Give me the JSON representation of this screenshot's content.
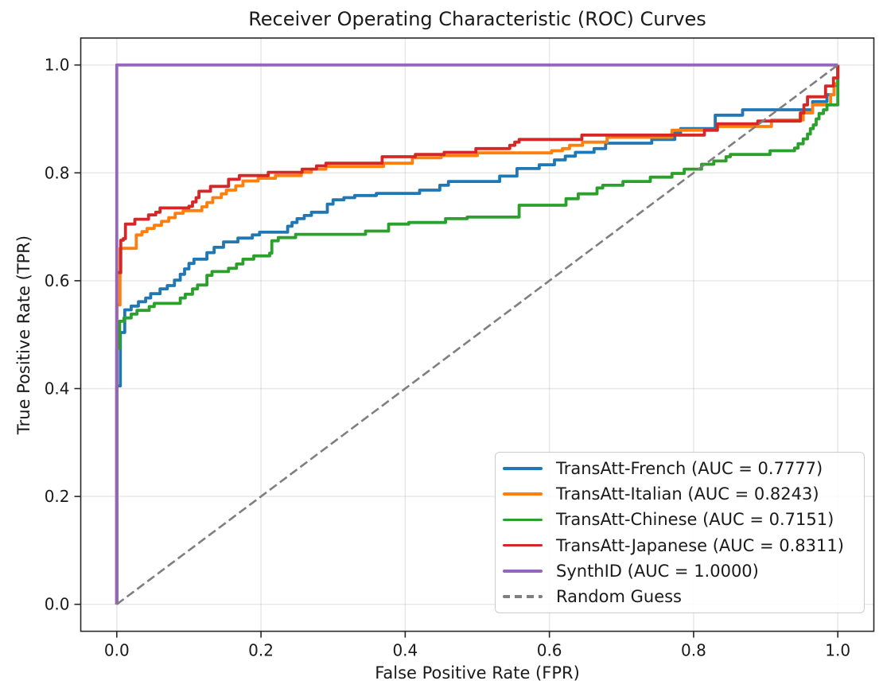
{
  "chart_data": {
    "type": "line",
    "title": "Receiver Operating Characteristic (ROC) Curves",
    "xlabel": "False Positive Rate (FPR)",
    "ylabel": "True Positive Rate (TPR)",
    "xlim": [
      -0.05,
      1.05
    ],
    "ylim": [
      -0.05,
      1.05
    ],
    "xtick_labels": [
      "0.0",
      "0.2",
      "0.4",
      "0.6",
      "0.8",
      "1.0"
    ],
    "ytick_labels": [
      "0.0",
      "0.2",
      "0.4",
      "0.6",
      "0.8",
      "1.0"
    ],
    "grid": true,
    "legend_position": "lower right",
    "axis_color": "#262626",
    "grid_color": "#b0b0b0",
    "series": [
      {
        "name": "transatt-french",
        "label": "TransAtt-French (AUC = 0.7777)",
        "auc": 0.7777,
        "color": "#1f77b4",
        "style": "step",
        "points": [
          [
            0,
            0
          ],
          [
            0,
            0.405
          ],
          [
            0.005,
            0.405
          ],
          [
            0.005,
            0.504
          ],
          [
            0.011,
            0.504
          ],
          [
            0.011,
            0.546
          ],
          [
            0.02,
            0.553
          ],
          [
            0.03,
            0.561
          ],
          [
            0.04,
            0.568
          ],
          [
            0.047,
            0.576
          ],
          [
            0.06,
            0.585
          ],
          [
            0.07,
            0.591
          ],
          [
            0.08,
            0.601
          ],
          [
            0.088,
            0.612
          ],
          [
            0.094,
            0.622
          ],
          [
            0.1,
            0.632
          ],
          [
            0.107,
            0.64
          ],
          [
            0.125,
            0.652
          ],
          [
            0.135,
            0.662
          ],
          [
            0.148,
            0.672
          ],
          [
            0.168,
            0.679
          ],
          [
            0.188,
            0.685
          ],
          [
            0.198,
            0.69
          ],
          [
            0.237,
            0.701
          ],
          [
            0.243,
            0.708
          ],
          [
            0.25,
            0.715
          ],
          [
            0.26,
            0.721
          ],
          [
            0.27,
            0.727
          ],
          [
            0.292,
            0.742
          ],
          [
            0.3,
            0.75
          ],
          [
            0.315,
            0.754
          ],
          [
            0.33,
            0.758
          ],
          [
            0.36,
            0.762
          ],
          [
            0.42,
            0.768
          ],
          [
            0.448,
            0.777
          ],
          [
            0.46,
            0.784
          ],
          [
            0.531,
            0.794
          ],
          [
            0.555,
            0.808
          ],
          [
            0.586,
            0.815
          ],
          [
            0.607,
            0.824
          ],
          [
            0.622,
            0.831
          ],
          [
            0.636,
            0.838
          ],
          [
            0.662,
            0.845
          ],
          [
            0.678,
            0.855
          ],
          [
            0.742,
            0.862
          ],
          [
            0.774,
            0.874
          ],
          [
            0.782,
            0.882
          ],
          [
            0.83,
            0.907
          ],
          [
            0.868,
            0.917
          ],
          [
            0.965,
            0.932
          ],
          [
            0.985,
            0.945
          ],
          [
            0.995,
            0.962
          ],
          [
            1,
            1
          ]
        ]
      },
      {
        "name": "transatt-italian",
        "label": "TransAtt-Italian (AUC = 0.8243)",
        "auc": 0.8243,
        "color": "#ff7f0e",
        "style": "step",
        "points": [
          [
            0,
            0
          ],
          [
            0,
            0.555
          ],
          [
            0.0045,
            0.555
          ],
          [
            0.0045,
            0.66
          ],
          [
            0.024,
            0.66
          ],
          [
            0.027,
            0.685
          ],
          [
            0.035,
            0.691
          ],
          [
            0.042,
            0.697
          ],
          [
            0.052,
            0.703
          ],
          [
            0.062,
            0.71
          ],
          [
            0.072,
            0.717
          ],
          [
            0.081,
            0.725
          ],
          [
            0.092,
            0.73
          ],
          [
            0.118,
            0.737
          ],
          [
            0.125,
            0.745
          ],
          [
            0.133,
            0.754
          ],
          [
            0.145,
            0.761
          ],
          [
            0.152,
            0.768
          ],
          [
            0.165,
            0.776
          ],
          [
            0.175,
            0.785
          ],
          [
            0.196,
            0.79
          ],
          [
            0.22,
            0.795
          ],
          [
            0.256,
            0.801
          ],
          [
            0.27,
            0.807
          ],
          [
            0.29,
            0.812
          ],
          [
            0.37,
            0.818
          ],
          [
            0.41,
            0.828
          ],
          [
            0.45,
            0.832
          ],
          [
            0.5,
            0.837
          ],
          [
            0.603,
            0.841
          ],
          [
            0.618,
            0.845
          ],
          [
            0.628,
            0.851
          ],
          [
            0.646,
            0.857
          ],
          [
            0.68,
            0.866
          ],
          [
            0.77,
            0.879
          ],
          [
            0.833,
            0.886
          ],
          [
            0.908,
            0.898
          ],
          [
            0.952,
            0.911
          ],
          [
            0.965,
            0.926
          ],
          [
            0.99,
            0.926
          ],
          [
            0.99,
            0.945
          ],
          [
            0.995,
            0.965
          ],
          [
            1,
            1
          ]
        ]
      },
      {
        "name": "transatt-chinese",
        "label": "TransAtt-Chinese (AUC = 0.7151)",
        "auc": 0.7151,
        "color": "#2ca02c",
        "style": "step",
        "points": [
          [
            0,
            0
          ],
          [
            0,
            0.475
          ],
          [
            0.004,
            0.475
          ],
          [
            0.004,
            0.525
          ],
          [
            0.01,
            0.531
          ],
          [
            0.02,
            0.538
          ],
          [
            0.028,
            0.545
          ],
          [
            0.045,
            0.552
          ],
          [
            0.052,
            0.558
          ],
          [
            0.088,
            0.568
          ],
          [
            0.095,
            0.575
          ],
          [
            0.105,
            0.585
          ],
          [
            0.112,
            0.592
          ],
          [
            0.125,
            0.61
          ],
          [
            0.132,
            0.617
          ],
          [
            0.155,
            0.623
          ],
          [
            0.166,
            0.631
          ],
          [
            0.175,
            0.64
          ],
          [
            0.19,
            0.646
          ],
          [
            0.212,
            0.651
          ],
          [
            0.215,
            0.674
          ],
          [
            0.224,
            0.68
          ],
          [
            0.248,
            0.686
          ],
          [
            0.345,
            0.692
          ],
          [
            0.377,
            0.705
          ],
          [
            0.405,
            0.708
          ],
          [
            0.456,
            0.715
          ],
          [
            0.486,
            0.718
          ],
          [
            0.558,
            0.74
          ],
          [
            0.623,
            0.752
          ],
          [
            0.64,
            0.761
          ],
          [
            0.666,
            0.772
          ],
          [
            0.674,
            0.777
          ],
          [
            0.702,
            0.784
          ],
          [
            0.74,
            0.792
          ],
          [
            0.77,
            0.799
          ],
          [
            0.787,
            0.807
          ],
          [
            0.811,
            0.816
          ],
          [
            0.828,
            0.822
          ],
          [
            0.845,
            0.83
          ],
          [
            0.851,
            0.834
          ],
          [
            0.906,
            0.841
          ],
          [
            0.94,
            0.846
          ],
          [
            0.945,
            0.854
          ],
          [
            0.952,
            0.863
          ],
          [
            0.958,
            0.872
          ],
          [
            0.962,
            0.882
          ],
          [
            0.966,
            0.889
          ],
          [
            0.97,
            0.9
          ],
          [
            0.974,
            0.91
          ],
          [
            0.98,
            0.917
          ],
          [
            0.985,
            0.926
          ],
          [
            1,
            0.932
          ],
          [
            1,
            1
          ]
        ]
      },
      {
        "name": "transatt-japanese",
        "label": "TransAtt-Japanese (AUC = 0.8311)",
        "auc": 0.8311,
        "color": "#d62728",
        "style": "step",
        "points": [
          [
            0,
            0
          ],
          [
            0,
            0.615
          ],
          [
            0.0055,
            0.615
          ],
          [
            0.0055,
            0.675
          ],
          [
            0.009,
            0.678
          ],
          [
            0.012,
            0.705
          ],
          [
            0.025,
            0.714
          ],
          [
            0.044,
            0.722
          ],
          [
            0.054,
            0.727
          ],
          [
            0.06,
            0.735
          ],
          [
            0.1,
            0.738
          ],
          [
            0.105,
            0.746
          ],
          [
            0.11,
            0.754
          ],
          [
            0.114,
            0.766
          ],
          [
            0.13,
            0.775
          ],
          [
            0.155,
            0.788
          ],
          [
            0.17,
            0.795
          ],
          [
            0.21,
            0.801
          ],
          [
            0.257,
            0.807
          ],
          [
            0.277,
            0.813
          ],
          [
            0.29,
            0.818
          ],
          [
            0.368,
            0.83
          ],
          [
            0.414,
            0.834
          ],
          [
            0.454,
            0.838
          ],
          [
            0.498,
            0.845
          ],
          [
            0.545,
            0.851
          ],
          [
            0.552,
            0.857
          ],
          [
            0.558,
            0.862
          ],
          [
            0.645,
            0.87
          ],
          [
            0.815,
            0.879
          ],
          [
            0.833,
            0.891
          ],
          [
            0.889,
            0.896
          ],
          [
            0.948,
            0.911
          ],
          [
            0.953,
            0.926
          ],
          [
            0.958,
            0.941
          ],
          [
            0.983,
            0.961
          ],
          [
            0.994,
            0.976
          ],
          [
            1,
            1
          ]
        ]
      },
      {
        "name": "synthid",
        "label": "SynthID (AUC = 1.0000)",
        "auc": 1.0,
        "color": "#9467bd",
        "style": "step",
        "points": [
          [
            0,
            0
          ],
          [
            0,
            1
          ],
          [
            1,
            1
          ]
        ]
      },
      {
        "name": "random-guess",
        "label": "Random Guess",
        "color": "#7f7f7f",
        "style": "dashed",
        "points": [
          [
            0,
            0
          ],
          [
            1,
            1
          ]
        ]
      }
    ]
  }
}
